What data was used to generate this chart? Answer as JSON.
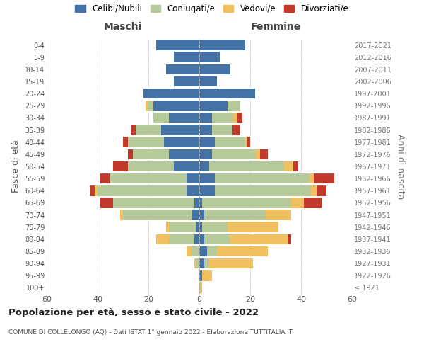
{
  "age_groups": [
    "100+",
    "95-99",
    "90-94",
    "85-89",
    "80-84",
    "75-79",
    "70-74",
    "65-69",
    "60-64",
    "55-59",
    "50-54",
    "45-49",
    "40-44",
    "35-39",
    "30-34",
    "25-29",
    "20-24",
    "15-19",
    "10-14",
    "5-9",
    "0-4"
  ],
  "birth_years": [
    "≤ 1921",
    "1922-1926",
    "1927-1931",
    "1932-1936",
    "1937-1941",
    "1942-1946",
    "1947-1951",
    "1952-1956",
    "1957-1961",
    "1962-1966",
    "1967-1971",
    "1972-1976",
    "1977-1981",
    "1982-1986",
    "1987-1991",
    "1992-1996",
    "1997-2001",
    "2002-2006",
    "2007-2011",
    "2012-2016",
    "2017-2021"
  ],
  "colors": {
    "celibi": "#4472a4",
    "coniugati": "#b5c99a",
    "vedovi": "#f0c060",
    "divorziati": "#c0392b"
  },
  "maschi": {
    "celibi": [
      0,
      0,
      0,
      0,
      2,
      1,
      3,
      2,
      5,
      5,
      10,
      12,
      14,
      15,
      12,
      18,
      22,
      10,
      13,
      10,
      17
    ],
    "coniugati": [
      0,
      0,
      1,
      3,
      10,
      11,
      27,
      32,
      35,
      30,
      18,
      14,
      14,
      10,
      6,
      2,
      0,
      0,
      0,
      0,
      0
    ],
    "vedovi": [
      0,
      0,
      1,
      2,
      5,
      1,
      1,
      0,
      1,
      0,
      0,
      0,
      0,
      0,
      0,
      1,
      0,
      0,
      0,
      0,
      0
    ],
    "divorziati": [
      0,
      0,
      0,
      0,
      0,
      0,
      0,
      5,
      2,
      4,
      6,
      2,
      2,
      2,
      0,
      0,
      0,
      0,
      0,
      0,
      0
    ]
  },
  "femmine": {
    "celibi": [
      0,
      1,
      2,
      3,
      2,
      1,
      2,
      1,
      6,
      6,
      4,
      5,
      6,
      5,
      5,
      11,
      22,
      7,
      12,
      8,
      18
    ],
    "coniugati": [
      0,
      0,
      2,
      4,
      10,
      10,
      24,
      35,
      38,
      37,
      29,
      17,
      12,
      8,
      8,
      5,
      0,
      0,
      0,
      0,
      0
    ],
    "vedovi": [
      1,
      4,
      17,
      20,
      23,
      20,
      10,
      5,
      2,
      2,
      4,
      2,
      1,
      0,
      2,
      0,
      0,
      0,
      0,
      0,
      0
    ],
    "divorziati": [
      0,
      0,
      0,
      0,
      1,
      0,
      0,
      7,
      4,
      8,
      2,
      3,
      1,
      3,
      2,
      0,
      0,
      0,
      0,
      0,
      0
    ]
  },
  "title": "Popolazione per età, sesso e stato civile - 2022",
  "subtitle": "COMUNE DI COLLELONGO (AQ) - Dati ISTAT 1° gennaio 2022 - Elaborazione TUTTITALIA.IT",
  "ylabel_left": "Fasce di età",
  "ylabel_right": "Anni di nascita",
  "xlabel_left": "Maschi",
  "xlabel_right": "Femmine",
  "xlim": 60,
  "legend_labels": [
    "Celibi/Nubili",
    "Coniugati/e",
    "Vedovi/e",
    "Divorziati/e"
  ],
  "background_color": "#ffffff",
  "grid_color": "#d0d0d0"
}
